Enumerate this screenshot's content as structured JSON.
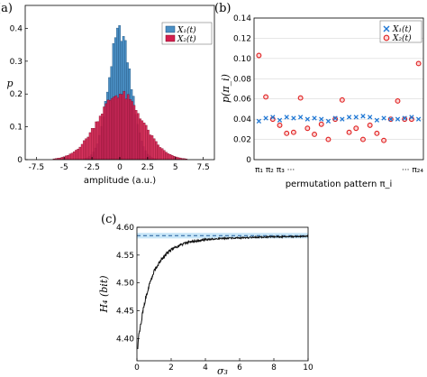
{
  "chart_data": [
    {
      "panel": "(a)",
      "type": "bar",
      "xlabel": "amplitude (a.u.)",
      "ylabel": "p",
      "xlim": [
        -8.5,
        8.5
      ],
      "ylim": [
        0,
        0.47
      ],
      "x_ticks": [
        "-7.5",
        "-5",
        "-2.5",
        "0",
        "2.5",
        "5",
        "7.5"
      ],
      "y_ticks": [
        "0",
        "0.1",
        "0.2",
        "0.3",
        "0.4"
      ],
      "legend": {
        "position": "top-right",
        "entries": [
          "X₁(t)",
          "X₂(t)"
        ]
      },
      "series": [
        {
          "name": "X₁(t)",
          "color": "#4a8fc4",
          "distribution": "gaussian",
          "mean": 0,
          "std": 1.0,
          "peak": 0.39
        },
        {
          "name": "X₂(t)",
          "color": "#d41e4e",
          "distribution": "gaussian",
          "mean": 0,
          "std": 2.0,
          "peak": 0.2
        }
      ]
    },
    {
      "panel": "(b)",
      "type": "scatter",
      "xlabel": "permutation pattern π_i",
      "ylabel": "p(π_i)",
      "xlim": [
        0.3,
        24.7
      ],
      "ylim": [
        0,
        0.14
      ],
      "x_tick_labels": [
        "π₁ π₂ π₃ ···",
        "··· π₂₄"
      ],
      "y_ticks": [
        "0",
        "0.02",
        "0.04",
        "0.06",
        "0.08",
        "0.10",
        "0.12",
        "0.14"
      ],
      "legend": {
        "position": "top-right",
        "entries": [
          "X₁(t)",
          "X₂(t)"
        ]
      },
      "series": [
        {
          "name": "X₁(t)",
          "marker": "x",
          "color": "#1f77d4",
          "x": [
            1,
            2,
            3,
            4,
            5,
            6,
            7,
            8,
            9,
            10,
            11,
            12,
            13,
            14,
            15,
            16,
            17,
            18,
            19,
            20,
            21,
            22,
            23,
            24
          ],
          "y": [
            0.038,
            0.041,
            0.042,
            0.039,
            0.042,
            0.041,
            0.042,
            0.04,
            0.041,
            0.04,
            0.038,
            0.041,
            0.04,
            0.042,
            0.042,
            0.043,
            0.042,
            0.039,
            0.041,
            0.04,
            0.04,
            0.041,
            0.042,
            0.04
          ]
        },
        {
          "name": "X₂(t)",
          "marker": "o",
          "color": "#e01f1f",
          "x": [
            1,
            2,
            3,
            4,
            5,
            6,
            7,
            8,
            9,
            10,
            11,
            12,
            13,
            14,
            15,
            16,
            17,
            18,
            19,
            20,
            21,
            22,
            23,
            24
          ],
          "y": [
            0.103,
            0.062,
            0.04,
            0.034,
            0.026,
            0.027,
            0.061,
            0.031,
            0.025,
            0.035,
            0.02,
            0.04,
            0.059,
            0.027,
            0.031,
            0.02,
            0.034,
            0.026,
            0.019,
            0.04,
            0.058,
            0.04,
            0.04,
            0.095
          ]
        }
      ]
    },
    {
      "panel": "(c)",
      "type": "line",
      "xlabel": "σ₃",
      "ylabel": "H₄ (bit)",
      "xlim": [
        0,
        10
      ],
      "ylim": [
        4.36,
        4.6
      ],
      "x_ticks": [
        "0",
        "2",
        "4",
        "6",
        "8",
        "10"
      ],
      "y_ticks": [
        "4.40",
        "4.45",
        "4.50",
        "4.55",
        "4.60"
      ],
      "reference_line": {
        "y": 4.585,
        "style": "dashed",
        "color": "#1f5a99",
        "band": [
          4.58,
          4.59
        ],
        "band_color": "#c8e6f8"
      },
      "series": [
        {
          "name": "",
          "color": "#111111",
          "x": [
            0.05,
            0.1,
            0.2,
            0.3,
            0.5,
            0.75,
            1.0,
            1.5,
            2.0,
            2.5,
            3.0,
            4.0,
            5.0,
            6.0,
            7.0,
            8.0,
            9.0,
            10.0
          ],
          "y": [
            4.38,
            4.4,
            4.42,
            4.44,
            4.47,
            4.5,
            4.52,
            4.545,
            4.56,
            4.568,
            4.573,
            4.578,
            4.58,
            4.581,
            4.582,
            4.583,
            4.583,
            4.584
          ]
        }
      ]
    }
  ]
}
